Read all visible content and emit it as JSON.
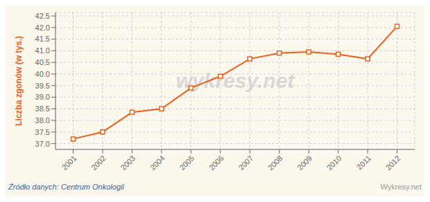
{
  "chart_data": {
    "type": "line",
    "x": [
      2001,
      2002,
      2003,
      2004,
      2005,
      2006,
      2007,
      2008,
      2009,
      2010,
      2011,
      2012
    ],
    "values": [
      37.2,
      37.5,
      38.35,
      38.5,
      39.4,
      39.9,
      40.65,
      40.9,
      40.95,
      40.85,
      40.65,
      42.05
    ],
    "color": "#E8601C",
    "marker": "square",
    "ylabel": "Liczba zgonów (w tys.)",
    "xlim": [
      2000.4,
      2012.6
    ],
    "ylim": [
      36.75,
      42.65
    ],
    "xticks": [
      2001,
      2002,
      2003,
      2004,
      2005,
      2006,
      2007,
      2008,
      2009,
      2010,
      2011,
      2012
    ],
    "yticks": [
      {
        "value": 37.0,
        "label": "37.0"
      },
      37.5,
      {
        "value": 38.0,
        "label": "38.0"
      },
      38.5,
      {
        "value": 39.0,
        "label": "39.0"
      },
      39.5,
      {
        "value": 40.0,
        "label": "40.0"
      },
      40.5,
      {
        "value": 41.0,
        "label": "41.0"
      },
      41.5,
      {
        "value": 42.0,
        "label": "42.0"
      },
      42.5
    ],
    "grid": true,
    "annotations": [
      "wykresy.net",
      "Źródło danych:  Centrum Onkologii",
      "Wykresy.net"
    ]
  }
}
